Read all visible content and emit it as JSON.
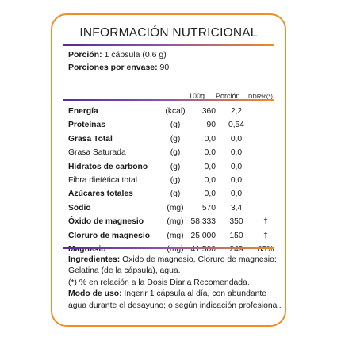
{
  "title": "INFORMACIÓN NUTRICIONAL",
  "serving": {
    "label": "Porción:",
    "value": "1 cápsula (0,6 g)"
  },
  "servings_per_container": {
    "label": "Porciones por envase:",
    "value": "90"
  },
  "columns": {
    "per100": "100g",
    "portion": "Porción",
    "ddr": "DDR%(*)"
  },
  "rows": [
    {
      "name": "Energía",
      "bold": true,
      "unit": "(kcal)",
      "per100": "360",
      "portion": "2,2",
      "ddr": ""
    },
    {
      "name": "Proteínas",
      "bold": true,
      "unit": "(g)",
      "per100": "90",
      "portion": "0,54",
      "ddr": ""
    },
    {
      "name": "Grasa Total",
      "bold": true,
      "unit": "(g)",
      "per100": "0,0",
      "portion": "0,0",
      "ddr": ""
    },
    {
      "name": "Grasa Saturada",
      "bold": false,
      "unit": "(g)",
      "per100": "0,0",
      "portion": "0,0",
      "ddr": ""
    },
    {
      "name": "Hidratos de carbono",
      "bold": true,
      "unit": "(g)",
      "per100": "0,0",
      "portion": "0,0",
      "ddr": ""
    },
    {
      "name": "Fibra dietética total",
      "bold": false,
      "unit": "(g)",
      "per100": "0,0",
      "portion": "0,0",
      "ddr": ""
    },
    {
      "name": "Azúcares totales",
      "bold": true,
      "unit": "(g)",
      "per100": "0,0",
      "portion": "0,0",
      "ddr": ""
    },
    {
      "name": "Sodio",
      "bold": true,
      "unit": "(mg)",
      "per100": "570",
      "portion": "3,4",
      "ddr": ""
    },
    {
      "name": "Óxido de magnesio",
      "bold": true,
      "unit": "(mg)",
      "per100": "58.333",
      "portion": "350",
      "ddr": "†"
    },
    {
      "name": "Cloruro de magnesio",
      "bold": true,
      "unit": "(mg)",
      "per100": "25.000",
      "portion": "150",
      "ddr": "†"
    },
    {
      "name": "Magnesio",
      "bold": true,
      "unit": "(mg)",
      "per100": "41.500",
      "portion": "249",
      "ddr": "83%"
    }
  ],
  "ingredients": {
    "label": "Ingredientes:",
    "text": "Óxido de magnesio, Cloruro de magnesio; Gelatina (de la cápsula), agua.",
    "note": "(*) % en relación a la Dosis Diaria Recomendada."
  },
  "usage": {
    "label": "Modo de uso:",
    "text": "Ingerir 1 cápsula al día, con abundante agua durante el desayuno; o según indicación profesional."
  },
  "colors": {
    "border": "#f28c28",
    "rule_start": "#5a2a9a",
    "rule_end": "#f08a2a"
  }
}
